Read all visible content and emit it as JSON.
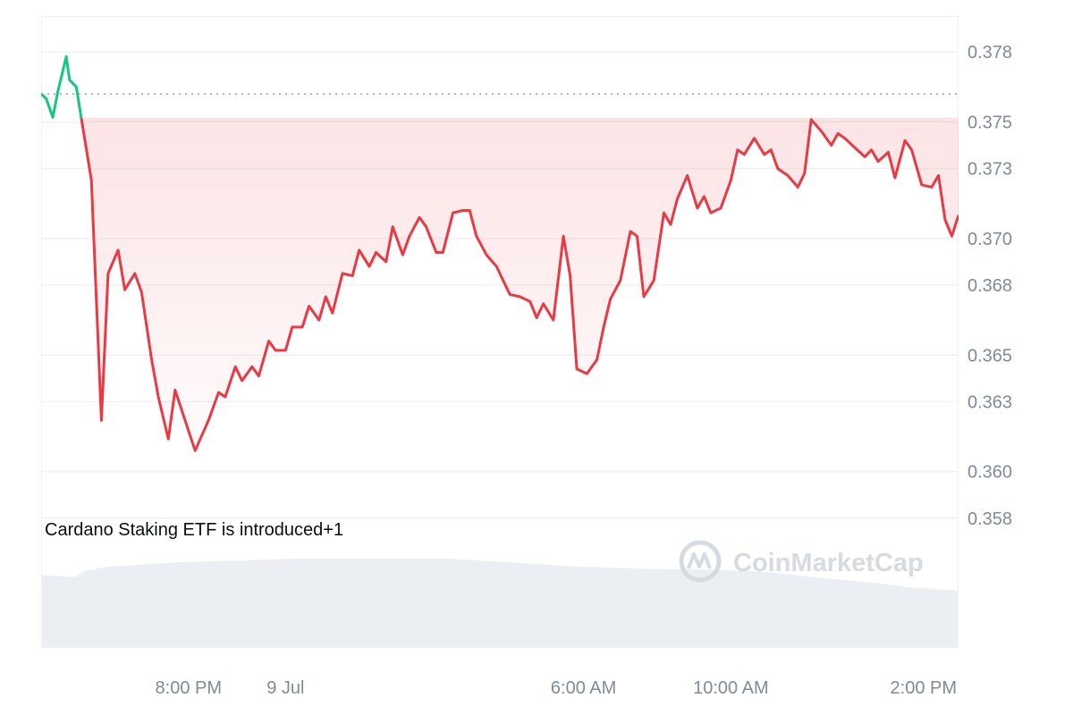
{
  "chart_data": {
    "type": "line",
    "title": "",
    "xlabel": "",
    "ylabel": "",
    "x_tick_labels": [
      "8:00 PM",
      "9 Jul",
      "6:00 AM",
      "10:00 AM",
      "2:00 PM"
    ],
    "y_tick_labels": [
      "0.358",
      "0.360",
      "0.363",
      "0.365",
      "0.368",
      "0.370",
      "0.373",
      "0.375",
      "0.378"
    ],
    "ylim": [
      0.3565,
      0.3795
    ],
    "reference_price": 0.3762,
    "grid": true,
    "annotation": "Cardano Staking ETF is introduced+1",
    "watermark": "CoinMarketCap",
    "colors": {
      "up": "#16c784",
      "down": "#ea3943",
      "volume": "#e8ecf1",
      "grid": "#eff2f5"
    },
    "series": [
      {
        "x_hours": [
          0,
          0.15,
          0.35,
          0.5,
          0.75,
          0.85,
          1.05,
          1.5,
          1.8,
          2.0,
          2.3,
          2.5,
          2.8,
          3.0,
          3.3,
          3.5,
          3.8,
          4.0,
          4.3,
          4.6,
          5.0,
          5.3,
          5.5,
          5.8,
          6.0,
          6.3,
          6.5,
          6.8,
          7.0,
          7.3,
          7.5,
          7.8,
          8.0,
          8.3,
          8.5,
          8.7,
          9.0,
          9.3,
          9.5,
          9.8,
          10.0,
          10.3,
          10.5,
          10.8,
          11.0,
          11.3,
          11.5,
          11.8,
          12.0,
          12.3,
          12.6,
          12.8,
          13.0,
          13.3,
          13.6,
          13.8,
          14.0,
          14.3,
          14.6,
          14.8,
          15.0,
          15.3,
          15.6,
          15.8,
          16.0,
          16.3,
          16.6,
          16.8,
          17.0,
          17.3,
          17.6,
          17.8,
          18.0,
          18.3,
          18.6,
          18.8,
          19.0,
          19.3,
          19.6,
          19.8,
          20.0,
          20.3,
          20.6,
          20.8,
          21.0,
          21.3,
          21.6,
          21.8,
          22.0,
          22.3,
          22.6,
          22.8,
          23.0,
          23.3,
          23.6,
          23.8,
          24.0,
          24.3,
          24.6,
          24.8,
          25.0,
          25.3,
          25.5,
          25.8,
          26.0,
          26.3,
          26.6,
          26.8,
          27.0,
          27.2,
          27.4
        ],
        "values": [
          0.3762,
          0.376,
          0.3752,
          0.3763,
          0.3778,
          0.3768,
          0.3765,
          0.3725,
          0.3622,
          0.3685,
          0.3695,
          0.3678,
          0.3685,
          0.3677,
          0.3648,
          0.3632,
          0.3614,
          0.3635,
          0.3622,
          0.3609,
          0.3622,
          0.3634,
          0.3632,
          0.3645,
          0.3639,
          0.3645,
          0.3641,
          0.3656,
          0.3652,
          0.3652,
          0.3662,
          0.3662,
          0.3671,
          0.3665,
          0.3675,
          0.3668,
          0.3685,
          0.3684,
          0.3695,
          0.3688,
          0.3694,
          0.369,
          0.3705,
          0.3693,
          0.3701,
          0.3709,
          0.3705,
          0.3694,
          0.3694,
          0.3711,
          0.3712,
          0.3712,
          0.3701,
          0.3693,
          0.3688,
          0.3682,
          0.3676,
          0.3675,
          0.3673,
          0.3666,
          0.3672,
          0.3665,
          0.3701,
          0.3684,
          0.3644,
          0.3642,
          0.3648,
          0.3662,
          0.3674,
          0.3682,
          0.3703,
          0.3701,
          0.3675,
          0.3682,
          0.3711,
          0.3706,
          0.3717,
          0.3727,
          0.3713,
          0.3718,
          0.3711,
          0.3713,
          0.3725,
          0.3738,
          0.3736,
          0.3743,
          0.3736,
          0.3738,
          0.373,
          0.3727,
          0.3722,
          0.3728,
          0.3751,
          0.3746,
          0.374,
          0.3745,
          0.3743,
          0.3739,
          0.3735,
          0.3738,
          0.3733,
          0.3737,
          0.3726,
          0.3742,
          0.3738,
          0.3723,
          0.3722,
          0.3727,
          0.3708,
          0.3701,
          0.371
        ]
      }
    ],
    "volume": [
      {
        "x": 0,
        "v": 0.7
      },
      {
        "x": 1,
        "v": 0.68
      },
      {
        "x": 1.3,
        "v": 0.74
      },
      {
        "x": 2,
        "v": 0.78
      },
      {
        "x": 3,
        "v": 0.8
      },
      {
        "x": 4,
        "v": 0.82
      },
      {
        "x": 5,
        "v": 0.83
      },
      {
        "x": 6,
        "v": 0.84
      },
      {
        "x": 8,
        "v": 0.86
      },
      {
        "x": 10,
        "v": 0.86
      },
      {
        "x": 11,
        "v": 0.86
      },
      {
        "x": 12,
        "v": 0.86
      },
      {
        "x": 13,
        "v": 0.84
      },
      {
        "x": 14,
        "v": 0.82
      },
      {
        "x": 15,
        "v": 0.8
      },
      {
        "x": 16,
        "v": 0.78
      },
      {
        "x": 18,
        "v": 0.76
      },
      {
        "x": 20,
        "v": 0.75
      },
      {
        "x": 21,
        "v": 0.74
      },
      {
        "x": 22,
        "v": 0.72
      },
      {
        "x": 23,
        "v": 0.68
      },
      {
        "x": 24,
        "v": 0.65
      },
      {
        "x": 25,
        "v": 0.62
      },
      {
        "x": 26,
        "v": 0.58
      },
      {
        "x": 27.4,
        "v": 0.55
      }
    ]
  }
}
